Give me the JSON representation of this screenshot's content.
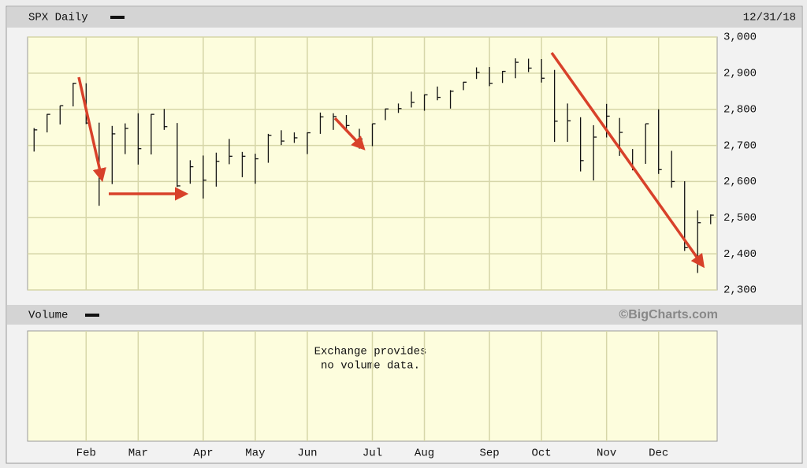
{
  "chart_data": {
    "type": "hlc",
    "title": "SPX Daily",
    "date": "12/31/18",
    "volume_title": "Volume",
    "credit": "©BigCharts.com",
    "volume_note": [
      "Exchange provides",
      "no volume data."
    ],
    "categories": [
      null,
      null,
      null,
      null,
      "Feb",
      null,
      null,
      null,
      "Mar",
      null,
      null,
      null,
      null,
      "Apr",
      null,
      null,
      null,
      "May",
      null,
      null,
      null,
      "Jun",
      null,
      null,
      null,
      null,
      "Jul",
      null,
      null,
      null,
      "Aug",
      null,
      null,
      null,
      null,
      "Sep",
      null,
      null,
      null,
      "Oct",
      null,
      null,
      null,
      null,
      "Nov",
      null,
      null,
      null,
      "Dec",
      null,
      null,
      null,
      null
    ],
    "high": [
      2748,
      2787,
      2810,
      2873,
      2872,
      2763,
      2754,
      2761,
      2789,
      2787,
      2801,
      2762,
      2659,
      2672,
      2680,
      2718,
      2682,
      2677,
      2732,
      2742,
      2736,
      2736,
      2791,
      2789,
      2784,
      2746,
      2760,
      2802,
      2816,
      2849,
      2841,
      2863,
      2853,
      2876,
      2916,
      2917,
      2906,
      2941,
      2940,
      2939,
      2909,
      2816,
      2778,
      2756,
      2815,
      2776,
      2690,
      2760,
      2800,
      2685,
      2601,
      2520,
      2509
    ],
    "low": [
      2683,
      2736,
      2758,
      2808,
      2759,
      2533,
      2593,
      2676,
      2647,
      2675,
      2743,
      2585,
      2594,
      2553,
      2586,
      2648,
      2612,
      2594,
      2652,
      2701,
      2707,
      2676,
      2732,
      2743,
      2742,
      2691,
      2698,
      2770,
      2790,
      2805,
      2796,
      2825,
      2802,
      2853,
      2884,
      2864,
      2873,
      2886,
      2903,
      2874,
      2710,
      2710,
      2628,
      2603,
      2722,
      2671,
      2631,
      2649,
      2621,
      2583,
      2408,
      2347,
      2482
    ],
    "close": [
      2743,
      2786,
      2810,
      2872,
      2762,
      2619,
      2732,
      2747,
      2691,
      2786,
      2752,
      2588,
      2641,
      2604,
      2656,
      2670,
      2670,
      2663,
      2728,
      2712,
      2721,
      2735,
      2779,
      2780,
      2755,
      2718,
      2760,
      2801,
      2802,
      2819,
      2840,
      2833,
      2850,
      2875,
      2902,
      2872,
      2905,
      2930,
      2914,
      2886,
      2767,
      2768,
      2658,
      2723,
      2781,
      2736,
      2633,
      2760,
      2633,
      2600,
      2417,
      2486,
      2507
    ],
    "color": "#111111",
    "ylim": [
      2300,
      3000
    ],
    "yticks": [
      {
        "value": 2300,
        "label": "2,300"
      },
      {
        "value": 2400,
        "label": "2,400"
      },
      {
        "value": 2500,
        "label": "2,500"
      },
      {
        "value": 2600,
        "label": "2,600"
      },
      {
        "value": 2700,
        "label": "2,700"
      },
      {
        "value": 2800,
        "label": "2,800"
      },
      {
        "value": 2900,
        "label": "2,900"
      },
      {
        "value": 3000,
        "label": "3,000"
      }
    ],
    "grid": true
  }
}
